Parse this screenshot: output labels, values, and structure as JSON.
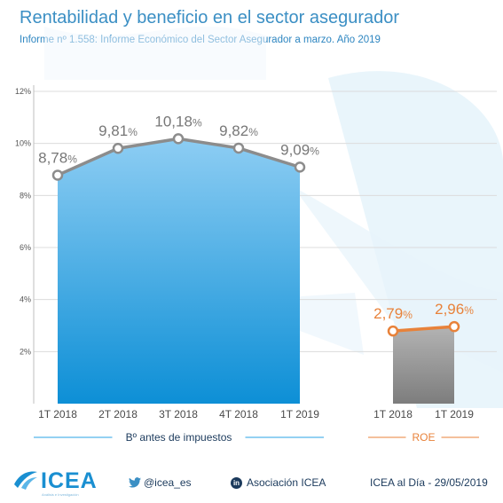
{
  "title": "Rentabilidad y beneficio en el sector asegurador",
  "subtitle": "Informe nº 1.558: Informe Económico del Sector Asegurador a marzo. Año 2019",
  "chart_data": {
    "type": "area",
    "ylim": [
      0,
      12
    ],
    "y_ticks": [
      "2%",
      "4%",
      "6%",
      "8%",
      "10%",
      "12%"
    ],
    "grid": true,
    "series": [
      {
        "name": "Bº antes de impuestos",
        "categories": [
          "1T 2018",
          "2T 2018",
          "3T 2018",
          "4T 2018",
          "1T 2019"
        ],
        "values": [
          8.78,
          9.81,
          10.18,
          9.82,
          9.09
        ],
        "labels": [
          "8,78",
          "9,81",
          "10,18",
          "9,82",
          "9,09"
        ],
        "color": "#29a3e6"
      },
      {
        "name": "ROE",
        "categories": [
          "1T 2018",
          "1T 2019"
        ],
        "values": [
          2.79,
          2.96
        ],
        "labels": [
          "2,79",
          "2,96"
        ],
        "color": "#e8823a"
      }
    ],
    "value_suffix": "%"
  },
  "footer": {
    "brand": "ICEA",
    "brand_tagline": "Análisis e Investigación",
    "twitter": "@icea_es",
    "linkedin": "Asociación ICEA",
    "date": "ICEA al Día - 29/05/2019"
  },
  "colors": {
    "title": "#3b8fc4",
    "line": "#8c8c8c",
    "roe": "#e8823a",
    "roe_area": "#9b9b9b"
  },
  "icons": [
    "twitter-icon",
    "linkedin-icon",
    "icea-logo"
  ]
}
